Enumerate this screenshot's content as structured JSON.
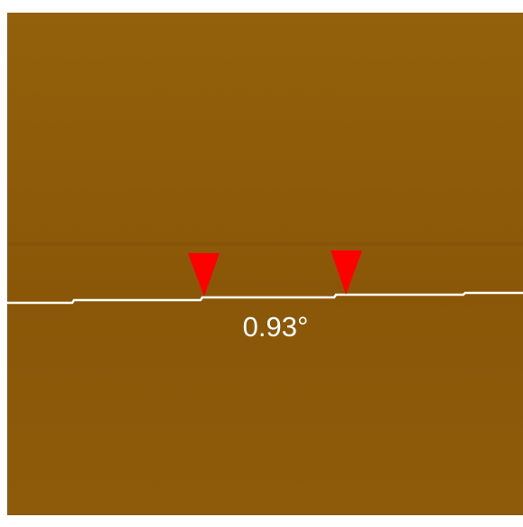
{
  "annotation": "0.93°"
}
